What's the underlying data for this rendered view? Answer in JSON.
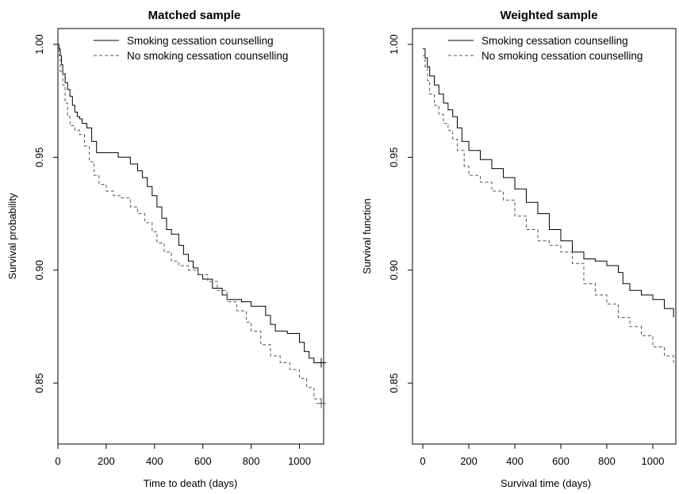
{
  "chart_data": [
    {
      "type": "line",
      "title": "Matched sample",
      "xlabel": "Time to death (days)",
      "ylabel": "Survival probability",
      "xlim": [
        0,
        1100
      ],
      "ylim": [
        0.823,
        1.007
      ],
      "x_ticks": [
        0,
        200,
        400,
        600,
        800,
        1000
      ],
      "x_tick_labels": [
        "0",
        "200",
        "400",
        "600",
        "800",
        "1000"
      ],
      "y_ticks": [
        0.85,
        0.9,
        0.95,
        1.0
      ],
      "y_tick_labels": [
        "0.85",
        "0.90",
        "0.95",
        "1.00"
      ],
      "grid": false,
      "legend_position": "top",
      "series": [
        {
          "name": "Smoking cessation counselling",
          "line_style": "solid",
          "step": true,
          "censor_marks": [
            [
              1090,
              0.859
            ]
          ],
          "x": [
            0,
            5,
            10,
            15,
            20,
            30,
            40,
            50,
            60,
            70,
            80,
            90,
            100,
            120,
            140,
            160,
            200,
            250,
            300,
            330,
            350,
            370,
            390,
            410,
            430,
            450,
            470,
            500,
            520,
            540,
            560,
            580,
            600,
            640,
            680,
            700,
            720,
            760,
            800,
            840,
            860,
            880,
            900,
            950,
            1000,
            1020,
            1040,
            1060,
            1090
          ],
          "y": [
            1.0,
            0.998,
            0.995,
            0.991,
            0.987,
            0.983,
            0.98,
            0.977,
            0.973,
            0.97,
            0.968,
            0.967,
            0.965,
            0.963,
            0.957,
            0.952,
            0.952,
            0.95,
            0.947,
            0.944,
            0.941,
            0.937,
            0.933,
            0.928,
            0.923,
            0.918,
            0.916,
            0.911,
            0.907,
            0.904,
            0.901,
            0.898,
            0.896,
            0.892,
            0.889,
            0.887,
            0.887,
            0.886,
            0.884,
            0.884,
            0.88,
            0.876,
            0.873,
            0.872,
            0.868,
            0.864,
            0.861,
            0.859,
            0.859
          ]
        },
        {
          "name": "No smoking cessation counselling",
          "line_style": "dashed",
          "step": true,
          "censor_marks": [
            [
              1090,
              0.841
            ]
          ],
          "x": [
            0,
            5,
            10,
            20,
            30,
            40,
            50,
            70,
            90,
            110,
            130,
            150,
            170,
            200,
            230,
            260,
            300,
            330,
            360,
            390,
            410,
            440,
            470,
            500,
            540,
            580,
            620,
            660,
            700,
            740,
            780,
            800,
            840,
            880,
            920,
            960,
            1000,
            1030,
            1060,
            1090
          ],
          "y": [
            1.0,
            0.995,
            0.988,
            0.982,
            0.974,
            0.968,
            0.964,
            0.962,
            0.96,
            0.955,
            0.948,
            0.942,
            0.938,
            0.935,
            0.933,
            0.932,
            0.928,
            0.925,
            0.921,
            0.917,
            0.912,
            0.908,
            0.904,
            0.902,
            0.9,
            0.898,
            0.895,
            0.891,
            0.886,
            0.882,
            0.877,
            0.873,
            0.867,
            0.862,
            0.859,
            0.856,
            0.852,
            0.848,
            0.843,
            0.841
          ]
        }
      ]
    },
    {
      "type": "line",
      "title": "Weighted sample",
      "xlabel": "Survival time (days)",
      "ylabel": "Survival function",
      "xlim": [
        -45,
        1100
      ],
      "ylim": [
        0.823,
        1.007
      ],
      "x_ticks": [
        0,
        200,
        400,
        600,
        800,
        1000
      ],
      "x_tick_labels": [
        "0",
        "200",
        "400",
        "600",
        "800",
        "1000"
      ],
      "y_ticks": [
        0.85,
        0.9,
        0.95,
        1.0
      ],
      "y_tick_labels": [
        "0.85",
        "0.90",
        "0.95",
        "1.00"
      ],
      "grid": false,
      "legend_position": "top",
      "series": [
        {
          "name": "Smoking cessation counselling",
          "line_style": "solid",
          "step": true,
          "censor_marks": [],
          "x": [
            0,
            10,
            20,
            30,
            50,
            70,
            90,
            110,
            130,
            150,
            170,
            200,
            250,
            300,
            350,
            400,
            450,
            500,
            550,
            600,
            650,
            700,
            750,
            800,
            850,
            870,
            900,
            950,
            1000,
            1050,
            1090
          ],
          "y": [
            0.998,
            0.994,
            0.99,
            0.986,
            0.982,
            0.978,
            0.974,
            0.971,
            0.968,
            0.963,
            0.957,
            0.953,
            0.949,
            0.945,
            0.941,
            0.936,
            0.93,
            0.925,
            0.918,
            0.913,
            0.908,
            0.905,
            0.904,
            0.902,
            0.899,
            0.894,
            0.891,
            0.889,
            0.887,
            0.883,
            0.879
          ]
        },
        {
          "name": "No smoking cessation counselling",
          "line_style": "dashed",
          "step": true,
          "censor_marks": [],
          "x": [
            0,
            10,
            20,
            30,
            50,
            70,
            90,
            110,
            130,
            150,
            180,
            200,
            250,
            300,
            350,
            400,
            450,
            500,
            550,
            600,
            650,
            700,
            750,
            800,
            850,
            900,
            950,
            1000,
            1050,
            1090
          ],
          "y": [
            0.995,
            0.99,
            0.984,
            0.978,
            0.973,
            0.969,
            0.965,
            0.962,
            0.958,
            0.953,
            0.946,
            0.942,
            0.939,
            0.935,
            0.931,
            0.924,
            0.918,
            0.913,
            0.911,
            0.908,
            0.903,
            0.894,
            0.889,
            0.885,
            0.879,
            0.875,
            0.871,
            0.866,
            0.862,
            0.859
          ]
        }
      ]
    }
  ]
}
